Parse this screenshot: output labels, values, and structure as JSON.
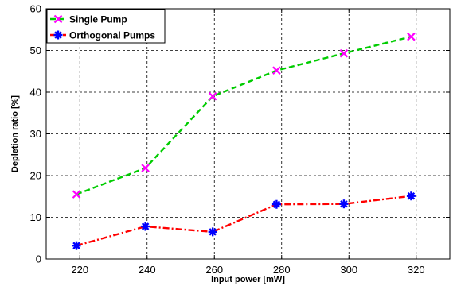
{
  "chart_data": {
    "type": "line",
    "xlabel": "Input power  [mW]",
    "ylabel": "Depletion ratio  [%]",
    "xlim": [
      210,
      330
    ],
    "ylim": [
      0,
      60
    ],
    "xticks": [
      220,
      240,
      260,
      280,
      300,
      320
    ],
    "yticks": [
      0,
      10,
      20,
      30,
      40,
      50,
      60
    ],
    "grid": true,
    "grid_style": "dashed",
    "legend_position": "top-left",
    "series": [
      {
        "name": "Single Pump",
        "color": "#00cc00",
        "marker_color": "#ff00ff",
        "marker": "x",
        "line_style": "dashed",
        "x": [
          219,
          239.5,
          259.5,
          278.5,
          298.5,
          318.5
        ],
        "y": [
          15.5,
          21.8,
          39,
          45.2,
          49.3,
          53.3
        ]
      },
      {
        "name": "Orthogonal Pumps",
        "color": "#ff0000",
        "marker_color": "#0000ff",
        "marker": "asterisk",
        "line_style": "dash-dot",
        "x": [
          219,
          239.5,
          259.5,
          278.5,
          298.5,
          318.5
        ],
        "y": [
          3.2,
          7.8,
          6.5,
          13.1,
          13.2,
          15.1
        ]
      }
    ]
  }
}
